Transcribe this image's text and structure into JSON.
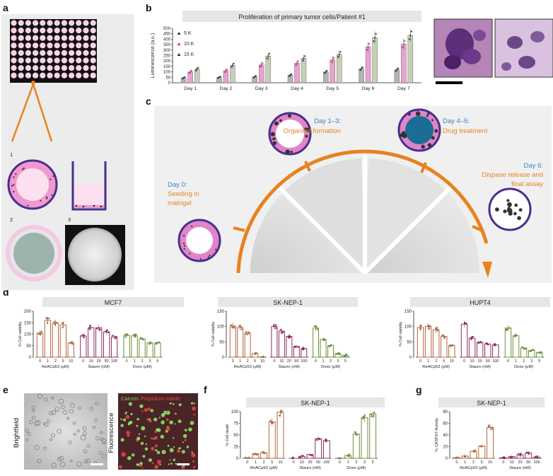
{
  "letters": {
    "a": "a",
    "b": "b",
    "c": "c",
    "d": "d",
    "e": "e",
    "f": "f",
    "g": "g"
  },
  "panel_a": {
    "step1": "1",
    "step2": "2",
    "step3": "3"
  },
  "panel_b": {
    "chart_data": {
      "type": "bar",
      "title": "Proliferation of primary tumor cells/Patient #1",
      "ylabel": "Luminescence (a.u.)",
      "ylim": [
        0,
        500
      ],
      "yticks": [
        "0",
        "50",
        "100",
        "150",
        "200",
        "250",
        "300",
        "350",
        "400",
        "450",
        "500"
      ],
      "categories": [
        "Day 1",
        "Day 2",
        "Day 3",
        "Day 4",
        "Day 5",
        "Day 6",
        "Day 7"
      ],
      "series": [
        {
          "name": "5 K",
          "color": "#b3b3b3",
          "values": [
            45,
            50,
            55,
            70,
            100,
            130,
            120
          ]
        },
        {
          "name": "10 K",
          "color": "#e8a3cf",
          "values": [
            100,
            110,
            165,
            180,
            210,
            330,
            355
          ]
        },
        {
          "name": "15 K",
          "color": "#c8cfb8",
          "values": [
            125,
            160,
            245,
            225,
            260,
            415,
            435
          ]
        }
      ]
    }
  },
  "panel_c": {
    "day0_title": "Day 0:",
    "day0_line1": "Seeding in",
    "day0_line2": "matrigel",
    "day13_title": "Day 1–3:",
    "day13_desc": "Organoid formation",
    "day45_title": "Day 4–5:",
    "day45_desc": "Drug treatment",
    "day6_title": "Day 6:",
    "day6_line1": "Dispase release and",
    "day6_line2": "final assay",
    "colors": {
      "title": "#3a7fc1",
      "desc": "#e8821e",
      "arrow": "#e8821e"
    }
  },
  "panel_d": {
    "chart_data": [
      {
        "type": "bar",
        "title": "MCF7",
        "ylabel": "% Cell viability",
        "ylim": [
          0,
          200
        ],
        "yticks": [
          "0",
          "50",
          "100",
          "150",
          "200"
        ],
        "groups": [
          {
            "name": "ReACp53 (μM)",
            "color": "#b5643c",
            "categories": [
              "0",
              "1",
              "2",
              "5",
              "10"
            ],
            "values": [
              105,
              160,
              148,
              140,
              62
            ]
          },
          {
            "name": "Stauro (nM)",
            "color": "#8e2a5e",
            "categories": [
              "0",
              "10",
              "20",
              "50",
              "100"
            ],
            "values": [
              92,
              128,
              128,
              110,
              88
            ]
          },
          {
            "name": "Doxo (μM)",
            "color": "#6d8e3a",
            "categories": [
              "0",
              "1",
              "2",
              "3",
              "5"
            ],
            "values": [
              95,
              93,
              80,
              62,
              62
            ]
          }
        ]
      },
      {
        "type": "bar",
        "title": "SK-NEP-1",
        "ylabel": "% Cell viability",
        "ylim": [
          0,
          150
        ],
        "yticks": [
          "0",
          "50",
          "100",
          "150"
        ],
        "groups": [
          {
            "name": "ReACp53 (μM)",
            "color": "#b5643c",
            "categories": [
              "0",
              "1",
              "2",
              "5",
              "10"
            ],
            "values": [
              102,
              97,
              78,
              12,
              0
            ]
          },
          {
            "name": "Stauro (nM)",
            "color": "#8e2a5e",
            "categories": [
              "0",
              "10",
              "20",
              "50",
              "100"
            ],
            "values": [
              100,
              85,
              68,
              35,
              28
            ]
          },
          {
            "name": "Doxo (μM)",
            "color": "#6d8e3a",
            "categories": [
              "0",
              "1",
              "2",
              "3",
              "5"
            ],
            "values": [
              95,
              58,
              38,
              12,
              6
            ]
          }
        ]
      },
      {
        "type": "bar",
        "title": "HUPT4",
        "ylabel": "% Cell viability",
        "ylim": [
          0,
          150
        ],
        "yticks": [
          "0",
          "50",
          "100",
          "150"
        ],
        "groups": [
          {
            "name": "ReACp53 (μM)",
            "color": "#b5643c",
            "categories": [
              "0",
              "1",
              "2",
              "5",
              "10"
            ],
            "values": [
              97,
              100,
              90,
              68,
              38
            ]
          },
          {
            "name": "Stauro (nM)",
            "color": "#8e2a5e",
            "categories": [
              "0",
              "10",
              "20",
              "50",
              "100"
            ],
            "values": [
              108,
              62,
              48,
              43,
              40
            ]
          },
          {
            "name": "Doxo (μM)",
            "color": "#6d8e3a",
            "categories": [
              "0",
              "1",
              "2",
              "3",
              "5"
            ],
            "values": [
              95,
              70,
              30,
              22,
              15
            ]
          }
        ]
      }
    ]
  },
  "panel_e": {
    "bright": "Brightfield",
    "fluor": "Fluorescence",
    "calcein": "Calcein",
    "pi": "Propidium iodide"
  },
  "panel_f": {
    "chart_data": {
      "type": "bar",
      "title": "SK-NEP-1",
      "ylabel": "% Cell death",
      "ylim": [
        0,
        100
      ],
      "yticks": [
        "0",
        "25",
        "50",
        "75",
        "100"
      ],
      "groups": [
        {
          "name": "ReACp53 (μM)",
          "color": "#b5643c",
          "categories": [
            "0",
            "1",
            "2",
            "5",
            "10"
          ],
          "values": [
            0,
            10,
            12,
            78,
            99
          ]
        },
        {
          "name": "Stauro (nM)",
          "color": "#8e2a5e",
          "categories": [
            "0",
            "10",
            "20",
            "50",
            "100"
          ],
          "values": [
            0,
            4,
            8,
            42,
            38
          ]
        },
        {
          "name": "Doxo (μM)",
          "color": "#6d8e3a",
          "categories": [
            "0",
            "1",
            "2",
            "3",
            "5"
          ],
          "values": [
            0,
            6,
            52,
            87,
            95
          ]
        }
      ]
    }
  },
  "panel_g": {
    "chart_data": {
      "type": "bar",
      "title": "SK-NEP-1",
      "ylabel": "% CASP3/7 Activity",
      "ylim": [
        0,
        80
      ],
      "yticks": [
        "0",
        "20",
        "40",
        "60",
        "80"
      ],
      "groups": [
        {
          "name": "ReACp53 (μM)",
          "color": "#b5643c",
          "categories": [
            "0",
            "1",
            "2",
            "5",
            "10"
          ],
          "values": [
            1,
            4,
            12,
            21,
            53
          ]
        },
        {
          "name": "Stauro (nM)",
          "color": "#8e2a5e",
          "categories": [
            "0",
            "10",
            "20",
            "50",
            "100"
          ],
          "values": [
            1,
            3,
            6,
            9,
            2
          ]
        }
      ]
    }
  }
}
